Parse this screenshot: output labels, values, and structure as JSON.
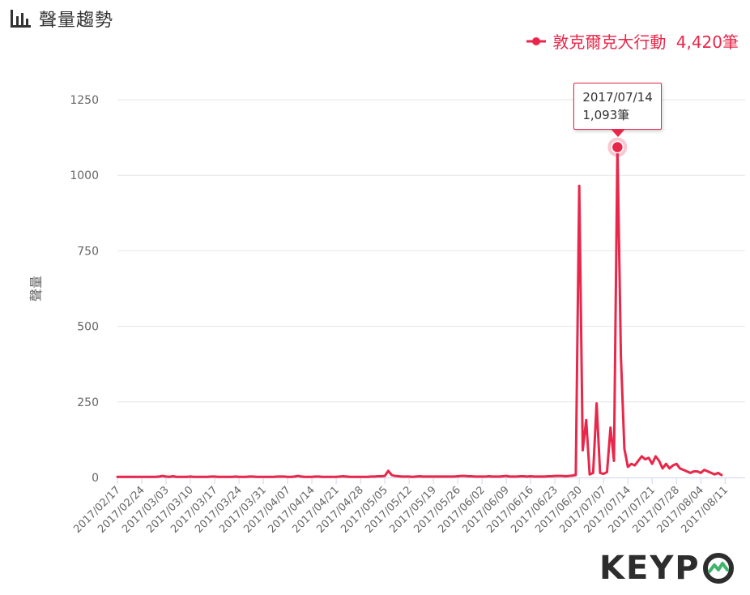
{
  "header": {
    "title": "聲量趨勢",
    "icon": "bar-chart-icon"
  },
  "legend": {
    "series_name": "敦克爾克大行動",
    "total": "4,420筆"
  },
  "tooltip": {
    "date": "2017/07/14",
    "value": "1,093筆"
  },
  "logo": {
    "text_part": "KEYP",
    "icon": "o-mountain-logo-icon",
    "brand": "KEYPO"
  },
  "colors": {
    "line": "#e8274a",
    "grid": "#e6e6e6",
    "text": "#666666"
  },
  "chart_data": {
    "type": "line",
    "title": "聲量趨勢",
    "ylabel": "聲量",
    "xlabel": "",
    "ylim": [
      0,
      1250
    ],
    "yticks": [
      0,
      250,
      500,
      750,
      1000,
      1250
    ],
    "xtick_labels": [
      "2017/02/17",
      "2017/02/24",
      "2017/03/03",
      "2017/03/10",
      "2017/03/17",
      "2017/03/24",
      "2017/03/31",
      "2017/04/07",
      "2017/04/14",
      "2017/04/21",
      "2017/04/28",
      "2017/05/05",
      "2017/05/12",
      "2017/05/19",
      "2017/05/26",
      "2017/06/02",
      "2017/06/09",
      "2017/06/16",
      "2017/06/23",
      "2017/06/30",
      "2017/07/07",
      "2017/07/14",
      "2017/07/21",
      "2017/07/28",
      "2017/08/04",
      "2017/08/11"
    ],
    "start_date": "2017/02/17",
    "series": [
      {
        "name": "敦克爾克大行動",
        "total": "4,420筆",
        "values": [
          2,
          2,
          2,
          2,
          2,
          2,
          2,
          2,
          2,
          2,
          2,
          2,
          3,
          5,
          3,
          2,
          4,
          2,
          2,
          2,
          2,
          3,
          2,
          2,
          2,
          2,
          2,
          3,
          3,
          2,
          2,
          2,
          2,
          2,
          3,
          2,
          2,
          2,
          3,
          3,
          2,
          2,
          2,
          2,
          2,
          2,
          3,
          3,
          3,
          2,
          2,
          3,
          5,
          3,
          2,
          2,
          2,
          3,
          3,
          2,
          2,
          2,
          2,
          2,
          3,
          4,
          3,
          2,
          2,
          2,
          2,
          2,
          2,
          3,
          3,
          4,
          4,
          5,
          22,
          8,
          5,
          4,
          3,
          3,
          3,
          2,
          3,
          4,
          3,
          3,
          3,
          3,
          3,
          3,
          3,
          3,
          3,
          3,
          4,
          5,
          5,
          4,
          4,
          3,
          3,
          3,
          3,
          4,
          3,
          3,
          3,
          4,
          5,
          3,
          3,
          3,
          4,
          4,
          3,
          4,
          3,
          3,
          3,
          3,
          4,
          4,
          5,
          5,
          5,
          4,
          5,
          6,
          8,
          965,
          90,
          190,
          10,
          15,
          245,
          15,
          12,
          18,
          165,
          55,
          1093,
          400,
          95,
          35,
          45,
          40,
          55,
          70,
          60,
          65,
          45,
          70,
          55,
          30,
          45,
          30,
          40,
          45,
          30,
          25,
          20,
          15,
          20,
          20,
          15,
          25,
          20,
          15,
          10,
          15,
          8
        ]
      }
    ]
  }
}
